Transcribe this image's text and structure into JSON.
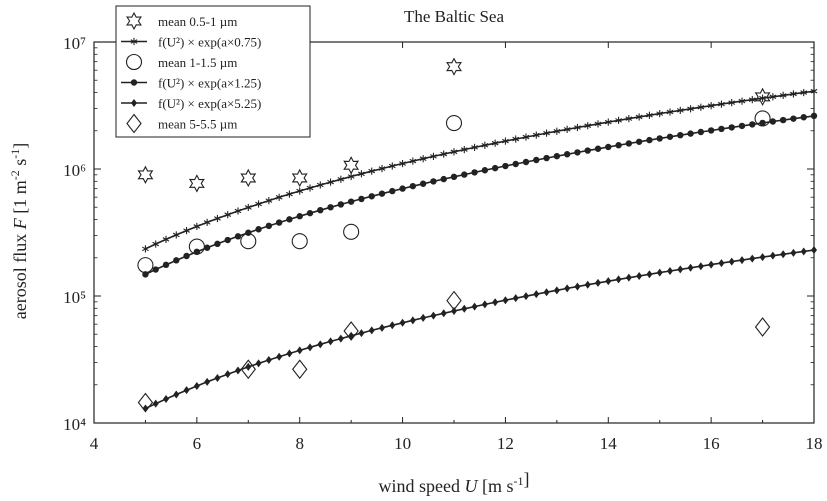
{
  "chart_data": {
    "type": "scatter",
    "title": "The Baltic Sea",
    "xlabel": "wind speed U [m s⁻¹]",
    "ylabel": "aerosol flux F [1 m⁻² s⁻¹]",
    "xlim": [
      4,
      18
    ],
    "ylim": [
      10000,
      10000000
    ],
    "yscale": "log",
    "grid": false,
    "legend_position": "top-left",
    "x_ticks": [
      "4",
      "6",
      "8",
      "10",
      "12",
      "14",
      "16",
      "18"
    ],
    "y_ticks": [
      "10⁴",
      "10⁵",
      "10⁶",
      "10⁷"
    ],
    "series": [
      {
        "name": "mean 0.5-1 µm",
        "kind": "markers",
        "marker": "star",
        "x": [
          5,
          6,
          7,
          8,
          9,
          11,
          17
        ],
        "y": [
          900000,
          770000,
          850000,
          850000,
          1070000,
          6400000,
          3700000
        ]
      },
      {
        "name": "f(U²) × exp(a×0.75)",
        "kind": "line",
        "marker": "small-star",
        "x_start": 5,
        "x_end": 18,
        "y_start": 235000,
        "y_end": 4100000
      },
      {
        "name": "mean 1-1.5 µm",
        "kind": "markers",
        "marker": "circle",
        "x": [
          5,
          6,
          7,
          8,
          9,
          11,
          17
        ],
        "y": [
          175000,
          245000,
          270000,
          270000,
          320000,
          2300000,
          2500000
        ]
      },
      {
        "name": "f(U²) × exp(a×1.25)",
        "kind": "line",
        "marker": "dot",
        "x_start": 5,
        "x_end": 18,
        "y_start": 148000,
        "y_end": 2620000
      },
      {
        "name": "f(U²) × exp(a×5.25)",
        "kind": "line",
        "marker": "small-diamond",
        "x_start": 5,
        "x_end": 18,
        "y_start": 13000,
        "y_end": 230000
      },
      {
        "name": "mean 5-5.5 µm",
        "kind": "markers",
        "marker": "diamond",
        "x": [
          5,
          7,
          8,
          9,
          11,
          17
        ],
        "y": [
          14500,
          26500,
          26500,
          53000,
          92000,
          57000
        ]
      }
    ]
  }
}
